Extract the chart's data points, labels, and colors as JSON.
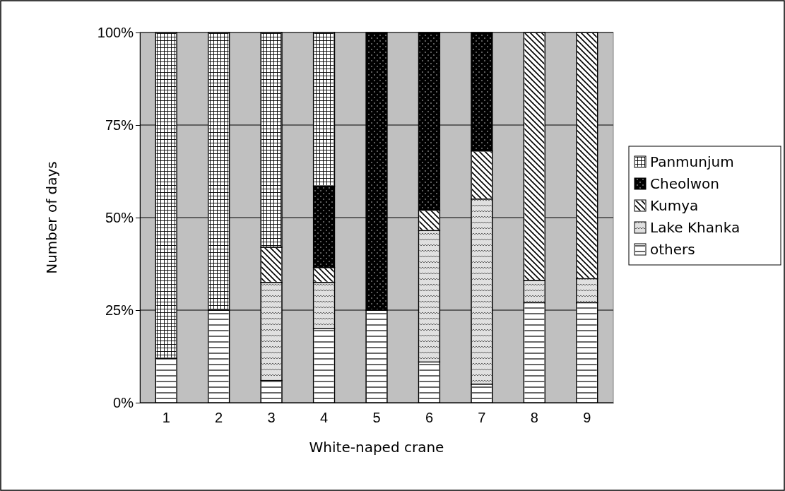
{
  "chart_data": {
    "type": "bar",
    "stacked": true,
    "xlabel": "White-naped crane",
    "ylabel": "Number of days",
    "categories": [
      "1",
      "2",
      "3",
      "4",
      "5",
      "6",
      "7",
      "8",
      "9"
    ],
    "series": [
      {
        "name": "others",
        "color": "#ffffff",
        "values": [
          12,
          25,
          6,
          20,
          25,
          11,
          5,
          27,
          27
        ]
      },
      {
        "name": "Lake Khanka",
        "color": "#e0e0e0",
        "values": [
          0,
          0,
          26.5,
          12.5,
          0,
          35.5,
          50,
          6,
          6.5
        ]
      },
      {
        "name": "Kumya",
        "color": "#ffffff",
        "values": [
          0,
          0,
          9.5,
          4,
          0,
          5.5,
          13,
          67,
          66.5
        ]
      },
      {
        "name": "Cheolwon",
        "color": "#000000",
        "values": [
          0,
          0,
          0,
          22,
          75,
          48,
          32,
          0,
          0
        ]
      },
      {
        "name": "Panmunjum",
        "color": "#ffffff",
        "values": [
          88,
          75,
          58,
          41.5,
          0,
          0,
          0,
          0,
          0
        ]
      }
    ],
    "ylim": [
      0,
      100
    ],
    "yticks": [
      {
        "value": 0,
        "label": "0%"
      },
      {
        "value": 25,
        "label": "25%"
      },
      {
        "value": 50,
        "label": "50%"
      },
      {
        "value": 75,
        "label": "75%"
      },
      {
        "value": 100,
        "label": "100%"
      }
    ],
    "grid": "y",
    "legend": "right"
  }
}
